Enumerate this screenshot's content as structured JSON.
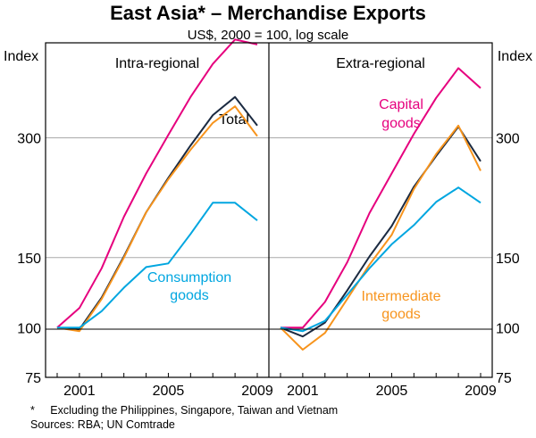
{
  "chart_data": {
    "type": "line",
    "title": "East Asia* – Merchandise Exports",
    "subtitle": "US$, 2000 = 100, log scale",
    "y_axis_label_left": "Index",
    "y_axis_label_right": "Index",
    "y_scale": "log",
    "ylim": [
      75,
      520
    ],
    "y_ticks": [
      75,
      100,
      150,
      300
    ],
    "x_ticks": [
      "2001",
      "2005",
      "2009"
    ],
    "footnotes": [
      "*     Excluding the Philippines, Singapore, Taiwan and Vietnam",
      "Sources: RBA; UN Comtrade"
    ],
    "x": [
      2000,
      2001,
      2002,
      2003,
      2004,
      2005,
      2006,
      2007,
      2008,
      2009
    ],
    "panels": [
      {
        "title": "Intra-regional",
        "series": [
          {
            "name": "Capital goods",
            "color": "#e6007e",
            "values": [
              100,
              112,
              141,
              190,
              244,
              305,
              380,
              460,
              530,
              515
            ],
            "label": ""
          },
          {
            "name": "Total",
            "color": "#1b2a41",
            "values": [
              100,
              99,
              119,
              151,
              195,
              238,
              287,
              342,
              380,
              322
            ],
            "label": "Total"
          },
          {
            "name": "Intermediate goods",
            "color": "#f7941d",
            "values": [
              100,
              98,
              118,
              150,
              195,
              236,
              280,
              327,
              360,
              303
            ],
            "label": ""
          },
          {
            "name": "Consumption goods",
            "color": "#00a6e0",
            "values": [
              100,
              100,
              110,
              126,
              142,
              145,
              172,
              206,
              206,
              186
            ],
            "label": "Consumption goods"
          }
        ]
      },
      {
        "title": "Extra-regional",
        "series": [
          {
            "name": "Capital goods",
            "color": "#e6007e",
            "values": [
              100,
              100,
              116,
              146,
              194,
              244,
              307,
              378,
              449,
              400
            ],
            "label": "Capital goods"
          },
          {
            "name": "Total",
            "color": "#1b2a41",
            "values": [
              100,
              95,
              103,
              124,
              151,
              180,
              226,
              270,
              320,
              262
            ],
            "label": ""
          },
          {
            "name": "Intermediate goods",
            "color": "#f7941d",
            "values": [
              100,
              88,
              97,
              118,
              144,
              171,
              223,
              273,
              322,
              248
            ],
            "label": "Intermediate goods"
          },
          {
            "name": "Consumption goods",
            "color": "#00a6e0",
            "values": [
              100,
              98,
              104,
              121,
              141,
              162,
              181,
              207,
              225,
              206
            ],
            "label": ""
          }
        ]
      }
    ]
  }
}
